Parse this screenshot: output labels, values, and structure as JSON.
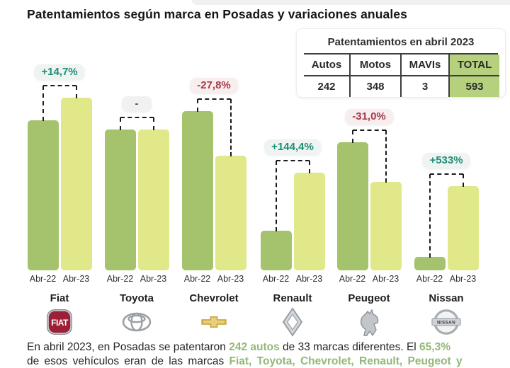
{
  "page": {
    "title": "Patentamientos según marca en Posadas y variaciones anuales"
  },
  "summary_table": {
    "title": "Patentamientos en abril 2023",
    "headers": [
      "Autos",
      "Motos",
      "MAVIs",
      "TOTAL"
    ],
    "values": [
      "242",
      "348",
      "3",
      "593"
    ],
    "highlight_color": "#b6d17e"
  },
  "chart_data": {
    "type": "bar",
    "title": "Patentamientos según marca en Posadas y variaciones anuales",
    "categories": [
      "Fiat",
      "Toyota",
      "Chevrolet",
      "Renault",
      "Peugeot",
      "Nissan"
    ],
    "tick_labels": [
      "Abr-22",
      "Abr-23"
    ],
    "series": [
      {
        "name": "Abr-22",
        "values": [
          212,
          199,
          225,
          56,
          181,
          19
        ]
      },
      {
        "name": "Abr-23",
        "values": [
          244,
          199,
          162,
          138,
          125,
          119
        ]
      }
    ],
    "value_units": "relative bar height in px (chart shows no numeric axis)",
    "variations": [
      {
        "brand": "Fiat",
        "label": "+14,7%",
        "direction": "up"
      },
      {
        "brand": "Toyota",
        "label": "-",
        "direction": "flat"
      },
      {
        "brand": "Chevrolet",
        "label": "-27,8%",
        "direction": "down"
      },
      {
        "brand": "Renault",
        "label": "+144,4%",
        "direction": "up"
      },
      {
        "brand": "Peugeot",
        "label": "-31,0%",
        "direction": "down"
      },
      {
        "brand": "Nissan",
        "label": "+533%",
        "direction": "up"
      }
    ],
    "colors": {
      "abr22_bar": "#a4c36c",
      "abr23_bar": "#e0e88a",
      "up_text": "#1e8e76",
      "up_bg": "#eff3f1",
      "down_text": "#a63a46",
      "down_bg": "#f8edef",
      "flat_text": "#4a4a4a",
      "flat_bg": "#f1f1f2"
    },
    "grid": false,
    "legend_position": "none"
  },
  "brands": [
    {
      "name": "Fiat",
      "logo": "fiat-logo"
    },
    {
      "name": "Toyota",
      "logo": "toyota-logo"
    },
    {
      "name": "Chevrolet",
      "logo": "chevrolet-logo"
    },
    {
      "name": "Renault",
      "logo": "renault-logo"
    },
    {
      "name": "Peugeot",
      "logo": "peugeot-logo"
    },
    {
      "name": "Nissan",
      "logo": "nissan-logo"
    }
  ],
  "footer": {
    "highlight_color": "#94b877",
    "line1": [
      {
        "text": "En abril 2023, en Posadas se patentaron ",
        "highlight": false
      },
      {
        "text": "242 autos",
        "highlight": true
      },
      {
        "text": " de 33 marcas diferentes. El ",
        "highlight": false
      },
      {
        "text": "65,3%",
        "highlight": true
      }
    ],
    "line2": [
      {
        "text": "de esos vehículos eran de las marcas ",
        "highlight": false
      },
      {
        "text": "Fiat, Toyota, Chevrolet, Renault, Peugeot y",
        "highlight": true
      }
    ]
  }
}
